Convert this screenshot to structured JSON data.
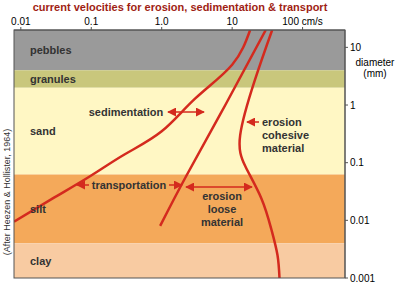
{
  "chart_data": {
    "type": "line",
    "title": "current velocities for erosion, sedimentation & transport",
    "y_label": "diameter (mm)",
    "log": true,
    "xlim": [
      0.008,
      400
    ],
    "xticks": [
      0.01,
      0.1,
      {
        "value": 1,
        "label": "1.0"
      },
      10,
      {
        "value": 100,
        "label": "100 cm/s"
      }
    ],
    "ylim": [
      0.001,
      20
    ],
    "yticks": [
      0.001,
      0.01,
      0.1,
      1,
      10
    ],
    "bands": [
      {
        "label": "pebbles",
        "from": 4,
        "to": 20,
        "color": "#9a9a9a"
      },
      {
        "label": "granules",
        "from": 2,
        "to": 4,
        "color": "#c9c77c"
      },
      {
        "label": "sand",
        "from": 0.0625,
        "to": 2,
        "color": "#fff7c4"
      },
      {
        "label": "silt",
        "from": 0.004,
        "to": 0.0625,
        "color": "#f4a95a"
      },
      {
        "label": "clay",
        "from": 0.001,
        "to": 0.004,
        "color": "#f8cba2"
      }
    ],
    "series": [
      {
        "color": "#d42a1e",
        "x": [
          0.008,
          0.03,
          0.1,
          0.3,
          1,
          3,
          10,
          18
        ],
        "values": [
          0.0095,
          0.025,
          0.06,
          0.14,
          0.35,
          1.3,
          5,
          20
        ]
      },
      {
        "color": "#d42a1e",
        "x": [
          0.95,
          2.2,
          8,
          30
        ],
        "values": [
          0.008,
          0.057,
          1,
          20
        ]
      },
      {
        "color": "#d42a1e",
        "x": [
          37,
          21,
          13,
          15.5,
          26,
          36,
          44,
          47
        ],
        "values": [
          20,
          2.7,
          0.3,
          0.085,
          0.024,
          0.007,
          0.0025,
          0.001
        ]
      }
    ],
    "annotations": [
      {
        "lines": [
          "sedimentation"
        ]
      },
      {
        "lines": [
          "erosion",
          "cohesive",
          "material"
        ]
      },
      {
        "lines": [
          "transportation"
        ]
      },
      {
        "lines": [
          "erosion",
          "loose",
          "material"
        ]
      },
      {
        "lines": [
          "(After Heezen & Hollister, 1964)"
        ]
      }
    ]
  }
}
